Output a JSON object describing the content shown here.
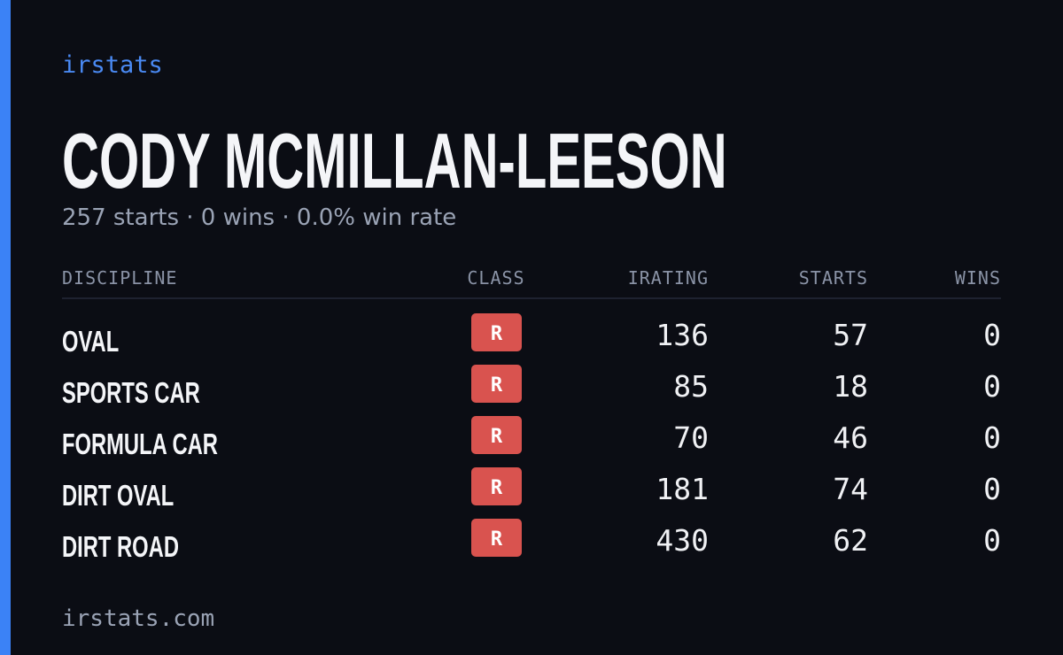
{
  "header": {
    "brand": "irstats"
  },
  "profile": {
    "name": "CODY MCMILLAN-LEESON",
    "summary": "257 starts · 0 wins · 0.0% win rate"
  },
  "table": {
    "columns": [
      "DISCIPLINE",
      "CLASS",
      "IRATING",
      "STARTS",
      "WINS"
    ],
    "rows": [
      [
        "OVAL",
        "R",
        136,
        57,
        0
      ],
      [
        "SPORTS CAR",
        "R",
        85,
        18,
        0
      ],
      [
        "FORMULA CAR",
        "R",
        70,
        46,
        0
      ],
      [
        "DIRT OVAL",
        "R",
        181,
        74,
        0
      ],
      [
        "DIRT ROAD",
        "R",
        430,
        62,
        0
      ]
    ]
  },
  "footer": {
    "site": "irstats.com"
  }
}
